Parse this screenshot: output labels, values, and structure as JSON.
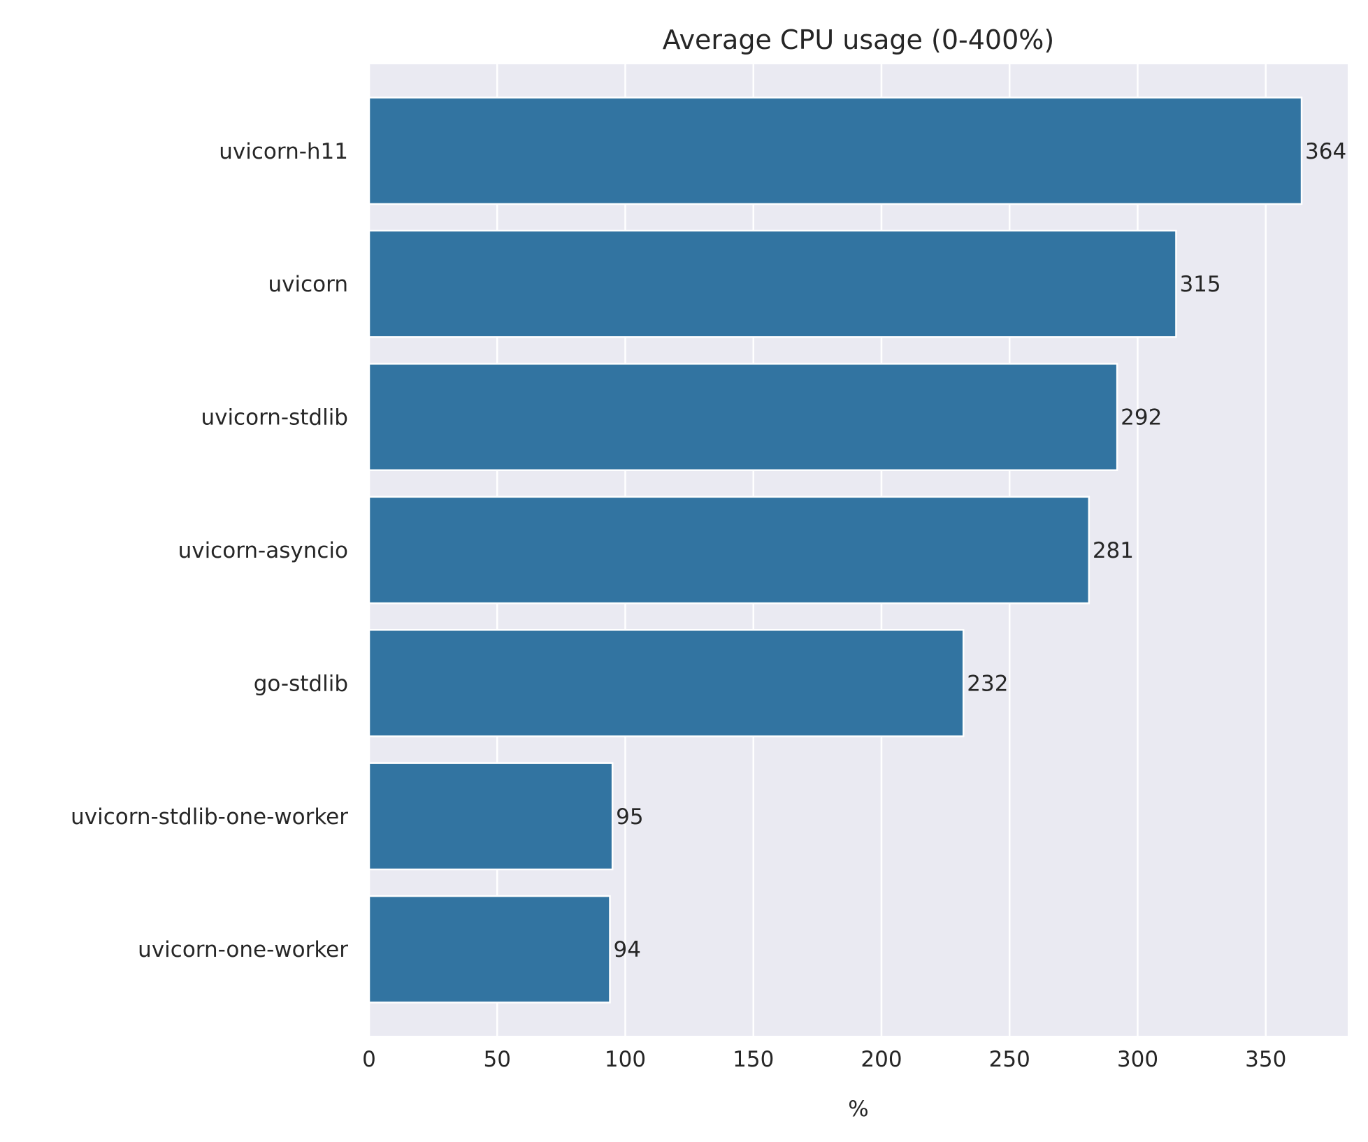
{
  "colors": {
    "plot_background": "#eaeaf2",
    "grid": "#ffffff",
    "bar": "#3274a1",
    "bar_edge": "#ffffff",
    "text": "#262626"
  },
  "chart_data": {
    "type": "bar",
    "orientation": "horizontal",
    "title": "Average CPU usage (0-400%)",
    "xlabel": "%",
    "ylabel": "",
    "categories": [
      "uvicorn-h11",
      "uvicorn",
      "uvicorn-stdlib",
      "uvicorn-asyncio",
      "go-stdlib",
      "uvicorn-stdlib-one-worker",
      "uvicorn-one-worker"
    ],
    "values": [
      364,
      315,
      292,
      281,
      232,
      95,
      94
    ],
    "data_labels": [
      "364",
      "315",
      "292",
      "281",
      "232",
      "95",
      "94"
    ],
    "xlim": [
      0,
      382
    ],
    "xticks": [
      0,
      50,
      100,
      150,
      200,
      250,
      300,
      350
    ],
    "xtick_labels": [
      "0",
      "50",
      "100",
      "150",
      "200",
      "250",
      "300",
      "350"
    ],
    "grid": true,
    "legend": "none"
  }
}
